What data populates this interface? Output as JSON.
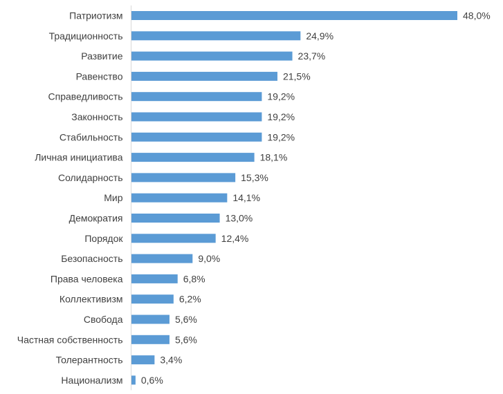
{
  "chart_data": {
    "type": "bar",
    "orientation": "horizontal",
    "title": "",
    "xlabel": "",
    "ylabel": "",
    "categories": [
      "Патриотизм",
      "Традиционность",
      "Развитие",
      "Равенство",
      "Справедливость",
      "Законность",
      "Стабильность",
      "Личная инициатива",
      "Солидарность",
      "Мир",
      "Демократия",
      "Порядок",
      "Безопасность",
      "Права человека",
      "Коллективизм",
      "Свобода",
      "Частная собственность",
      "Толерантность",
      "Национализм"
    ],
    "values": [
      48.0,
      24.9,
      23.7,
      21.5,
      19.2,
      19.2,
      19.2,
      18.1,
      15.3,
      14.1,
      13.0,
      12.4,
      9.0,
      6.8,
      6.2,
      5.6,
      5.6,
      3.4,
      0.6
    ],
    "value_labels": [
      "48,0%",
      "24,9%",
      "23,7%",
      "21,5%",
      "19,2%",
      "19,2%",
      "19,2%",
      "18,1%",
      "15,3%",
      "14,1%",
      "13,0%",
      "12,4%",
      "9,0%",
      "6,8%",
      "6,2%",
      "5,6%",
      "5,6%",
      "3,4%",
      "0,6%"
    ],
    "xlim": [
      0,
      48
    ],
    "grid": false,
    "legend": "none",
    "bar_color": "#5b9bd5",
    "axis_color": "#d9d9d9",
    "text_color": "#404040"
  }
}
